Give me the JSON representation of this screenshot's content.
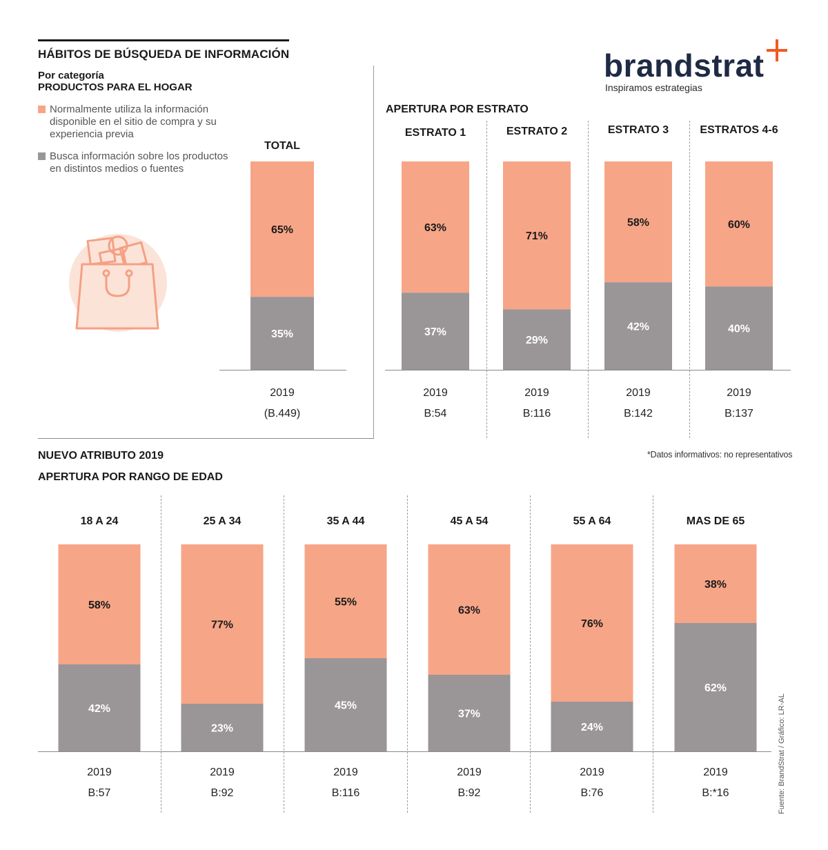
{
  "header": {
    "title": "HÁBITOS DE BÚSQUEDA DE INFORMACIÓN",
    "category_label": "Por categoría",
    "category_name": "PRODUCTOS PARA EL HOGAR"
  },
  "legend": {
    "items": [
      {
        "color": "#F7A587",
        "text": "Normalmente utiliza la información disponible en el sitio de compra y su experiencia previa"
      },
      {
        "color": "#9A9597",
        "text": "Busca información sobre los productos en distintos medios o fuentes"
      }
    ]
  },
  "brand": {
    "name": "brandstrat",
    "tagline": "Inspiramos estrategias",
    "accent": "#F15A22"
  },
  "sections": {
    "estrato_title": "APERTURA POR ESTRATO",
    "nuevo_atributo": "NUEVO ATRIBUTO 2019",
    "edad_title": "APERTURA POR RANGO DE EDAD",
    "note": "*Datos informativos: no representativos",
    "source": "Fuente: BrandStrat / Gráfico: LR-AL"
  },
  "colors": {
    "top": "#F7A587",
    "bottom": "#9A9597"
  },
  "chart_data": [
    {
      "type": "bar",
      "stacked": true,
      "title": "TOTAL",
      "series_names": [
        "Normalmente utiliza la información disponible en el sitio de compra y su experiencia previa",
        "Busca información sobre los productos en distintos medios o fuentes"
      ],
      "groups": [
        {
          "label": "TOTAL",
          "year": "2019",
          "base": "(B.449)",
          "top": 65,
          "bottom": 35,
          "top_label": "65%",
          "bottom_label": "35%"
        }
      ]
    },
    {
      "type": "bar",
      "stacked": true,
      "title": "APERTURA POR ESTRATO",
      "groups": [
        {
          "label": "ESTRATO 1",
          "year": "2019",
          "base": "B:54",
          "top": 63,
          "bottom": 37,
          "top_label": "63%",
          "bottom_label": "37%"
        },
        {
          "label": "ESTRATO 2",
          "year": "2019",
          "base": "B:116",
          "top": 71,
          "bottom": 29,
          "top_label": "71%",
          "bottom_label": "29%"
        },
        {
          "label": "ESTRATO 3",
          "year": "2019",
          "base": "B:142",
          "top": 58,
          "bottom": 42,
          "top_label": "58%",
          "bottom_label": "42%"
        },
        {
          "label": "ESTRATOS 4-6",
          "year": "2019",
          "base": "B:137",
          "top": 60,
          "bottom": 40,
          "top_label": "60%",
          "bottom_label": "40%"
        }
      ]
    },
    {
      "type": "bar",
      "stacked": true,
      "title": "APERTURA POR RANGO DE EDAD",
      "groups": [
        {
          "label": "18 A 24",
          "year": "2019",
          "base": "B:57",
          "top": 58,
          "bottom": 42,
          "top_label": "58%",
          "bottom_label": "42%"
        },
        {
          "label": "25 A 34",
          "year": "2019",
          "base": "B:92",
          "top": 77,
          "bottom": 23,
          "top_label": "77%",
          "bottom_label": "23%"
        },
        {
          "label": "35 A 44",
          "year": "2019",
          "base": "B:116",
          "top": 55,
          "bottom": 45,
          "top_label": "55%",
          "bottom_label": "45%"
        },
        {
          "label": "45 A 54",
          "year": "2019",
          "base": "B:92",
          "top": 63,
          "bottom": 37,
          "top_label": "63%",
          "bottom_label": "37%"
        },
        {
          "label": "55 A 64",
          "year": "2019",
          "base": "B:76",
          "top": 76,
          "bottom": 24,
          "top_label": "76%",
          "bottom_label": "24%"
        },
        {
          "label": "MAS DE 65",
          "year": "2019",
          "base": "B:*16",
          "top": 38,
          "bottom": 62,
          "top_label": "38%",
          "bottom_label": "62%"
        }
      ]
    }
  ]
}
